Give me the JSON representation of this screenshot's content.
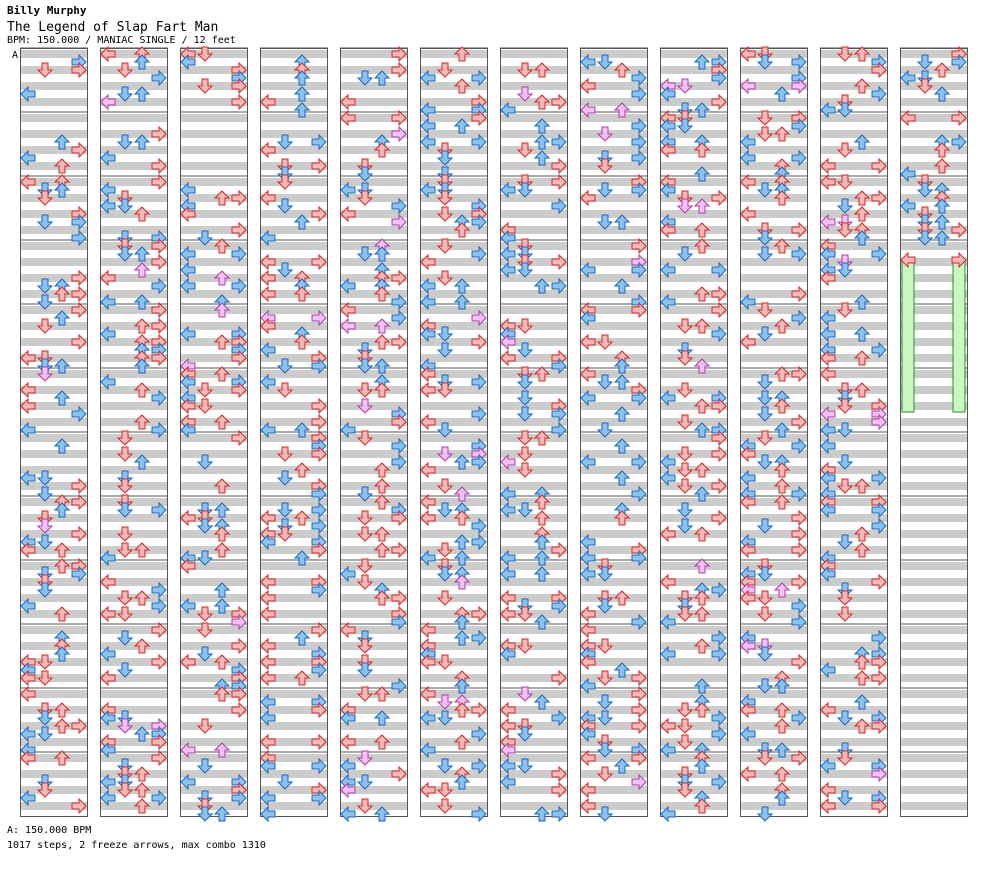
{
  "header": {
    "author": "Billy Murphy",
    "title": "The Legend of Slap Fart Man",
    "meta": "BPM: 150.000 / MANIAC SINGLE / 12 feet"
  },
  "chart": {
    "marker": "A",
    "columns": 12,
    "measures_per_column": 12,
    "lanes": [
      "left",
      "down",
      "up",
      "right"
    ],
    "colors": {
      "quarter_fill": "#f7b7b7",
      "quarter_stroke": "#cc2a2a",
      "eighth_fill": "#8cc2f2",
      "eighth_stroke": "#1a64b8",
      "sixteenth_fill": "#f6c0f6",
      "sixteenth_stroke": "#a63fa6",
      "freeze_fill": "#c8f8c0",
      "freeze_stroke": "#2f8a2f",
      "stripe": "#cccccc",
      "border": "#555555"
    },
    "freeze_arrows": [
      {
        "column": 12,
        "lane": "left",
        "from_measure": 4,
        "to_measure": 6
      },
      {
        "column": 12,
        "lane": "right",
        "from_measure": 4,
        "to_measure": 6
      }
    ]
  },
  "footer": {
    "bpm_line": "A: 150.000 BPM",
    "summary": "1017 steps, 2 freeze arrows, max combo 1310"
  }
}
